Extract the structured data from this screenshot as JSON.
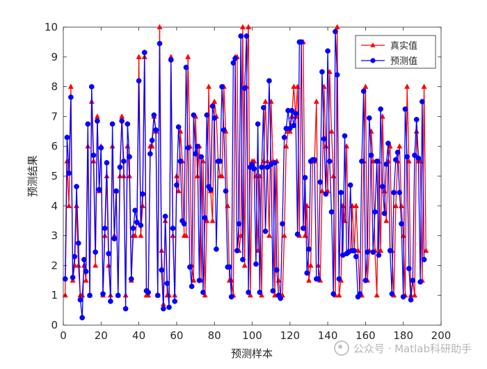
{
  "chart_data": {
    "type": "line",
    "xlabel": "预测样本",
    "ylabel": "预测结果",
    "xlim": [
      0,
      200
    ],
    "ylim": [
      0,
      10
    ],
    "xticks": [
      "0",
      "20",
      "40",
      "60",
      "80",
      "100",
      "120",
      "140",
      "160",
      "180",
      "200"
    ],
    "yticks": [
      "0",
      "1",
      "2",
      "3",
      "4",
      "5",
      "6",
      "7",
      "8",
      "9",
      "10"
    ],
    "grid": false,
    "legend_position": "top-right",
    "series": [
      {
        "name": "真实值",
        "color": "#ff0000",
        "marker": "triangle",
        "values": [
          1,
          5.5,
          4,
          8,
          1.5,
          2,
          4,
          2,
          1,
          1,
          2,
          1.5,
          6,
          1,
          7.5,
          5.5,
          2,
          7,
          4.5,
          6,
          1,
          3,
          5,
          2,
          1,
          6,
          3,
          4.5,
          1,
          5,
          7,
          5,
          1,
          6,
          5,
          1.5,
          3,
          3,
          3.5,
          9,
          3,
          4,
          9,
          1,
          1,
          6,
          6,
          7,
          6.5,
          1,
          10,
          2.5,
          0.7,
          3.5,
          1,
          1,
          9,
          3,
          1,
          5,
          4.5,
          6.5,
          5.5,
          3,
          3,
          9,
          6,
          2,
          1.5,
          7,
          5,
          6,
          1.5,
          5.5,
          1,
          3.5,
          8,
          4.5,
          3.5,
          7.5,
          7,
          5.5,
          5,
          5,
          8,
          6.5,
          4,
          1.5,
          1.5,
          1,
          9,
          9,
          2.5,
          3,
          10,
          2,
          8,
          10,
          1,
          5.5,
          5.5,
          5,
          2.5,
          5,
          1,
          5.5,
          7.5,
          5.5,
          3,
          7.5,
          5.5,
          1,
          5.5,
          1.5,
          1,
          1,
          3,
          6,
          6.5,
          6.5,
          7,
          8,
          7,
          8,
          3,
          9.5,
          9.5,
          3,
          4,
          1.5,
          2,
          5.5,
          5.5,
          7.5,
          2,
          1.5,
          4.5,
          8,
          6,
          4.5,
          8.5,
          6.5,
          5,
          1,
          10,
          1,
          1.5,
          4,
          3.5,
          6,
          2.5,
          2.5,
          4,
          2.5,
          4,
          2.5,
          1,
          1,
          5.5,
          8,
          1.5,
          2.5,
          6.5,
          5.5,
          2.5,
          1,
          5.5,
          2.5,
          7,
          4.5,
          3.5,
          5.5,
          6,
          2.5,
          1,
          4,
          5.5,
          6,
          4,
          3,
          1,
          8,
          5.5,
          1,
          1.5,
          1,
          6.5,
          5.5,
          5.5,
          1.5,
          8,
          2.5
        ],
        "x_start": 1,
        "x_step": 1
      },
      {
        "name": "预测值",
        "color": "#0000ff",
        "marker": "circle",
        "values": [
          1.55,
          6.3,
          5.1,
          7.65,
          1.6,
          2.3,
          4.65,
          2.75,
          0.85,
          0.25,
          2.2,
          1.8,
          6.75,
          1,
          8,
          5.7,
          2.45,
          6.85,
          4.55,
          5.95,
          1.05,
          3.25,
          5.45,
          2.4,
          0.8,
          6.75,
          2.9,
          4.5,
          1,
          5.3,
          6.85,
          5.5,
          0.55,
          6.75,
          5.65,
          1.55,
          3.25,
          3.85,
          3.45,
          8.2,
          3.35,
          4.4,
          9.15,
          1.15,
          1.1,
          5.75,
          6.2,
          7.05,
          6.55,
          1,
          9.45,
          1.85,
          0.55,
          3.65,
          1.4,
          0.6,
          8.9,
          3.25,
          0.8,
          4.7,
          6.65,
          5.5,
          3.5,
          3.4,
          8.65,
          5.95,
          1.95,
          1.3,
          7.05,
          5.75,
          6,
          1.5,
          5.65,
          1.1,
          3.6,
          7.05,
          4.65,
          4.55,
          7.35,
          6.95,
          2.55,
          5.5,
          5.5,
          8,
          6.55,
          4.5,
          1.95,
          1.95,
          0.95,
          8.8,
          8.95,
          2.5,
          3.4,
          9.7,
          2.2,
          7.95,
          9.7,
          1.1,
          5.3,
          5.4,
          5.25,
          2.05,
          6.75,
          1.1,
          5.3,
          7.3,
          3.15,
          5.3,
          8.2,
          5.4,
          1.15,
          5.45,
          1.85,
          1,
          0.9,
          3.4,
          6.3,
          6.6,
          7.2,
          6.6,
          7.2,
          6.7,
          7.1,
          3.05,
          9.5,
          9.5,
          3.25,
          4.95,
          1.75,
          2.55,
          5.5,
          5.55,
          5.55,
          1.55,
          1.55,
          4.8,
          8.5,
          6.25,
          4.4,
          9.2,
          5.5,
          3.8,
          1.05,
          9.85,
          8.4,
          1.55,
          4.45,
          2.35,
          6.35,
          2.4,
          2.45,
          4.7,
          2.5,
          2.5,
          2.3,
          0.95,
          1.05,
          5.5,
          7.85,
          1.5,
          2.45,
          6.95,
          5.7,
          2.45,
          3.8,
          5.5,
          2.35,
          7.25,
          4.65,
          3.75,
          5.4,
          6.1,
          2.5,
          1.05,
          4.45,
          5.55,
          5.8,
          4.45,
          3.4,
          0.95,
          7.25,
          5.65,
          1.9,
          0.85,
          1.5,
          5.7,
          6.9,
          5.6,
          1.45,
          7.5,
          2.2
        ],
        "x_start": 1,
        "x_step": 1
      }
    ]
  },
  "watermark": {
    "text": "公众号 · Matlab科研助手"
  }
}
